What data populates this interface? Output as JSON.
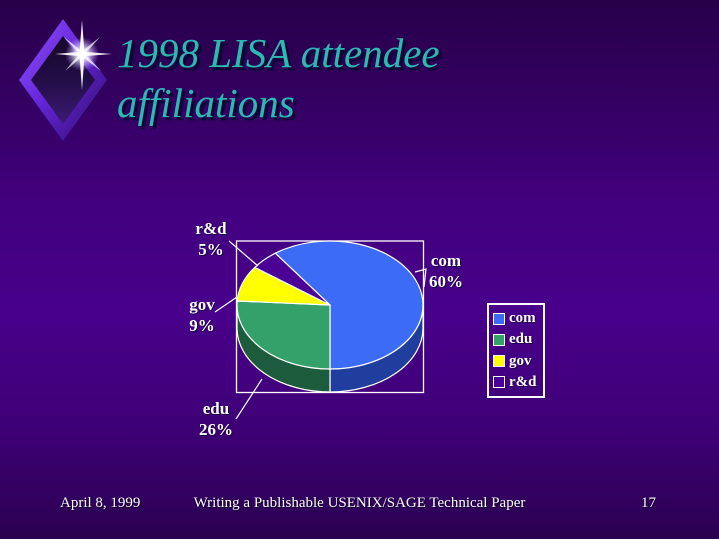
{
  "slide": {
    "title_line1": "1998 LISA attendee",
    "title_line2": "affiliations",
    "title_color": "#2CB9B1"
  },
  "chart_data": {
    "type": "pie",
    "style": "3d-pie",
    "title": "1998 LISA attendee affiliations",
    "categories": [
      "com",
      "edu",
      "gov",
      "r&d"
    ],
    "values": [
      60,
      26,
      9,
      5
    ],
    "value_unit": "%",
    "colors": [
      "#3C6CF5",
      "#34A06A",
      "#FFFF00",
      "#4B0096"
    ],
    "side_colors": [
      "#1F3E9E",
      "#1C5B3B",
      "#8A8A00",
      "#2A0060"
    ],
    "start_angle_deg": -36,
    "legend_position": "right",
    "legend_entries": [
      "com",
      "edu",
      "gov",
      "r&d"
    ],
    "plot_border_color": "#FFFFFF",
    "label_color": "#FFFFFF",
    "data_labels": [
      "com 60%",
      "edu 26%",
      "gov 9%",
      "r&d 5%"
    ]
  },
  "footer": {
    "date": "April 8, 1999",
    "center_text": "Writing a Publishable USENIX/SAGE Technical Paper",
    "page_number": "17"
  }
}
